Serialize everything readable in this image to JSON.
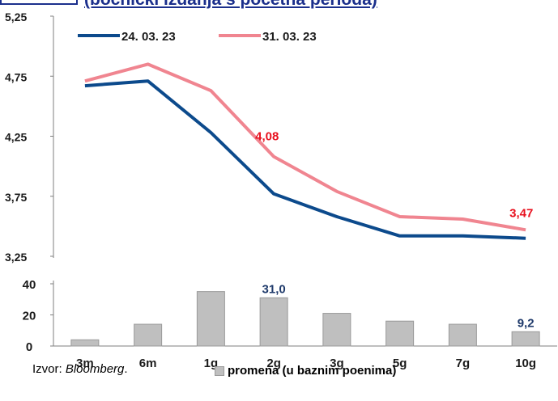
{
  "header": {
    "title": "(bočnički izdanja s početna perioda)"
  },
  "source": {
    "prefix": "Izvor: ",
    "name": "Bloomberg",
    "suffix": "."
  },
  "bar_legend_label": "promena (u baznim poenima)",
  "chart_data": [
    {
      "type": "line",
      "categories": [
        "3m",
        "6m",
        "1g",
        "2g",
        "3g",
        "5g",
        "7g",
        "10g"
      ],
      "ylim": [
        3.25,
        5.25
      ],
      "yticks": [
        "5,25",
        "4,75",
        "4,25",
        "3,75",
        "3,25"
      ],
      "ytick_values": [
        5.25,
        4.75,
        4.25,
        3.75,
        3.25
      ],
      "legend_position": "top-left",
      "series": [
        {
          "name": "24. 03. 23",
          "color": "#0c4a8c",
          "values": [
            4.67,
            4.71,
            4.28,
            3.77,
            3.58,
            3.42,
            3.42,
            3.4
          ]
        },
        {
          "name": "31. 03. 23",
          "color": "#f08590",
          "values": [
            4.71,
            4.85,
            4.63,
            4.08,
            3.79,
            3.58,
            3.56,
            3.47
          ]
        }
      ],
      "annotations": [
        {
          "category": "2g",
          "text": "4,08",
          "color": "#e8101e"
        },
        {
          "category": "10g",
          "text": "3,47",
          "color": "#e8101e"
        }
      ]
    },
    {
      "type": "bar",
      "categories": [
        "3m",
        "6m",
        "1g",
        "2g",
        "3g",
        "5g",
        "7g",
        "10g"
      ],
      "ylim": [
        0,
        40
      ],
      "yticks": [
        "40",
        "20",
        "0"
      ],
      "ytick_values": [
        40,
        20,
        0
      ],
      "series": [
        {
          "name": "promena (u baznim poenima)",
          "color": "#bfbfbf",
          "values": [
            4.0,
            14.0,
            35.0,
            31.0,
            21.0,
            16.0,
            14.0,
            9.2
          ]
        }
      ],
      "data_labels": [
        {
          "category": "2g",
          "text": "31,0"
        },
        {
          "category": "10g",
          "text": "9,2"
        }
      ]
    }
  ]
}
